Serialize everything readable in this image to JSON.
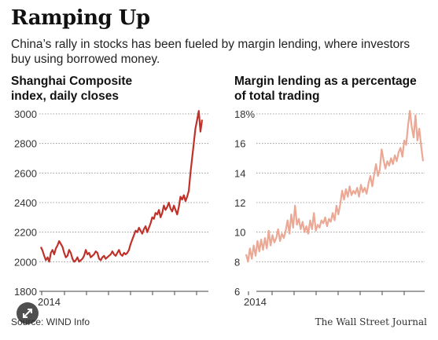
{
  "title": "Ramping Up",
  "subtitle": "China’s rally in stocks has been fueled by margin lending, where investors buy using borrowed money.",
  "source": "Source: WIND Info",
  "credit": "The Wall Street Journal",
  "icons": {
    "expand": "expand-arrows-icon"
  },
  "chart_data": [
    {
      "type": "line",
      "title": "Shanghai Composite index, daily closes",
      "x_label": "2014",
      "y_ticks": [
        1800,
        2000,
        2200,
        2400,
        2600,
        2800,
        3000
      ],
      "ylim": [
        1800,
        3050
      ],
      "grid": true,
      "color": "#c0312a",
      "series": [
        {
          "values": [
            2100,
            2075,
            2040,
            2010,
            2030,
            2000,
            2060,
            2080,
            2050,
            2090,
            2110,
            2140,
            2120,
            2100,
            2060,
            2030,
            2040,
            2080,
            2060,
            2020,
            2000,
            2010,
            2030,
            2000,
            2010,
            2020,
            2040,
            2080,
            2050,
            2060,
            2030,
            2040,
            2050,
            2070,
            2060,
            2020,
            2010,
            2030,
            2040,
            2020,
            2030,
            2040,
            2050,
            2070,
            2050,
            2040,
            2060,
            2080,
            2050,
            2040,
            2060,
            2050,
            2060,
            2080,
            2120,
            2150,
            2180,
            2210,
            2200,
            2230,
            2210,
            2190,
            2220,
            2240,
            2200,
            2230,
            2260,
            2300,
            2290,
            2330,
            2320,
            2350,
            2300,
            2330,
            2380,
            2350,
            2370,
            2400,
            2360,
            2340,
            2380,
            2350,
            2320,
            2370,
            2440,
            2420,
            2450,
            2410,
            2440,
            2480,
            2600,
            2700,
            2800,
            2900,
            2960,
            3020,
            2880,
            2960
          ]
        }
      ]
    },
    {
      "type": "line",
      "title": "Margin lending as a percentage of total trading",
      "x_label": "2014",
      "y_ticks": [
        "6",
        "8",
        "10",
        "12",
        "14",
        "16",
        "18%"
      ],
      "ylim": [
        6,
        18.3
      ],
      "grid": true,
      "color": "#eba895",
      "series": [
        {
          "values": [
            8.5,
            8.0,
            8.9,
            8.2,
            9.1,
            8.4,
            9.4,
            8.7,
            9.5,
            8.8,
            9.6,
            8.9,
            10.1,
            9.1,
            9.8,
            9.3,
            9.6,
            10.2,
            9.4,
            9.9,
            9.6,
            10.1,
            10.8,
            9.9,
            11.2,
            10.3,
            11.8,
            10.5,
            10.9,
            10.2,
            10.7,
            10.0,
            10.4,
            9.9,
            10.8,
            10.2,
            11.3,
            10.1,
            10.5,
            10.3,
            10.8,
            10.6,
            11.0,
            10.4,
            10.9,
            10.7,
            11.3,
            10.8,
            11.8,
            11.2,
            11.9,
            12.8,
            12.2,
            12.9,
            12.4,
            13.1,
            12.5,
            12.8,
            12.6,
            13.0,
            12.4,
            13.2,
            12.7,
            13.0,
            12.6,
            13.3,
            13.8,
            13.1,
            13.9,
            14.6,
            13.8,
            14.2,
            15.6,
            14.9,
            14.3,
            14.8,
            14.5,
            15.0,
            14.6,
            15.2,
            14.8,
            15.4,
            15.7,
            15.1,
            16.2,
            15.9,
            17.2,
            18.2,
            17.1,
            16.4,
            17.9,
            16.2,
            17.0,
            15.8,
            14.8
          ]
        }
      ]
    }
  ]
}
